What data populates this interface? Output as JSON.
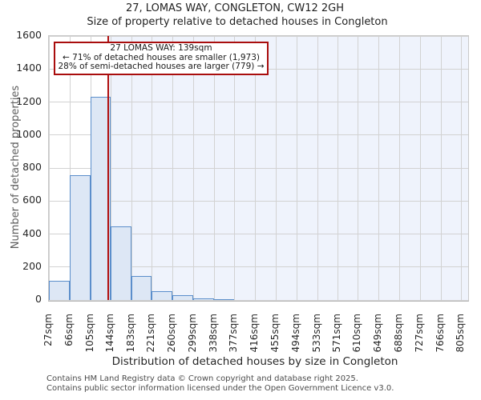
{
  "chart_data": {
    "type": "bar",
    "title": "27, LOMAS WAY, CONGLETON, CW12 2GH",
    "subtitle": "Size of property relative to detached houses in Congleton",
    "xlabel": "Distribution of detached houses by size in Congleton",
    "ylabel": "Number of detached properties",
    "bin_edges": [
      27,
      66,
      105,
      144,
      183,
      221,
      260,
      299,
      338,
      377,
      416,
      455,
      494,
      533,
      571,
      610,
      649,
      688,
      727,
      766,
      805
    ],
    "xtick_labels": [
      "27sqm",
      "66sqm",
      "105sqm",
      "144sqm",
      "183sqm",
      "221sqm",
      "260sqm",
      "299sqm",
      "338sqm",
      "377sqm",
      "416sqm",
      "455sqm",
      "494sqm",
      "533sqm",
      "571sqm",
      "610sqm",
      "649sqm",
      "688sqm",
      "727sqm",
      "766sqm",
      "805sqm"
    ],
    "counts": [
      115,
      755,
      1230,
      445,
      145,
      55,
      30,
      10,
      5,
      0,
      0,
      0,
      0,
      0,
      0,
      0,
      0,
      0,
      0,
      0
    ],
    "ytick_values": [
      0,
      200,
      400,
      600,
      800,
      1000,
      1200,
      1400,
      1600
    ],
    "ytick_labels": [
      "0",
      "200",
      "400",
      "600",
      "800",
      "1000",
      "1200",
      "1400",
      "1600"
    ],
    "ylim": [
      0,
      1600
    ],
    "xlim": [
      27,
      818
    ],
    "grid": true,
    "legend": "none",
    "marker": {
      "value_sqm": 139
    },
    "shaded_region": {
      "from_sqm": 139,
      "to_sqm": 818
    },
    "annotation": {
      "line1": "27 LOMAS WAY: 139sqm",
      "line2": "← 71% of detached houses are smaller (1,973)",
      "line3": "28% of semi-detached houses are larger (779) →"
    },
    "colors": {
      "bar_fill": "#dde7f5",
      "bar_edge": "#5b8ecb",
      "marker_line": "#b00f0f",
      "annotation_border": "#a90d0d",
      "grid": "#d2d2d2",
      "shade": "#eff3fc"
    }
  },
  "footer": {
    "line1": "Contains HM Land Registry data © Crown copyright and database right 2025.",
    "line2": "Contains public sector information licensed under the Open Government Licence v3.0."
  }
}
